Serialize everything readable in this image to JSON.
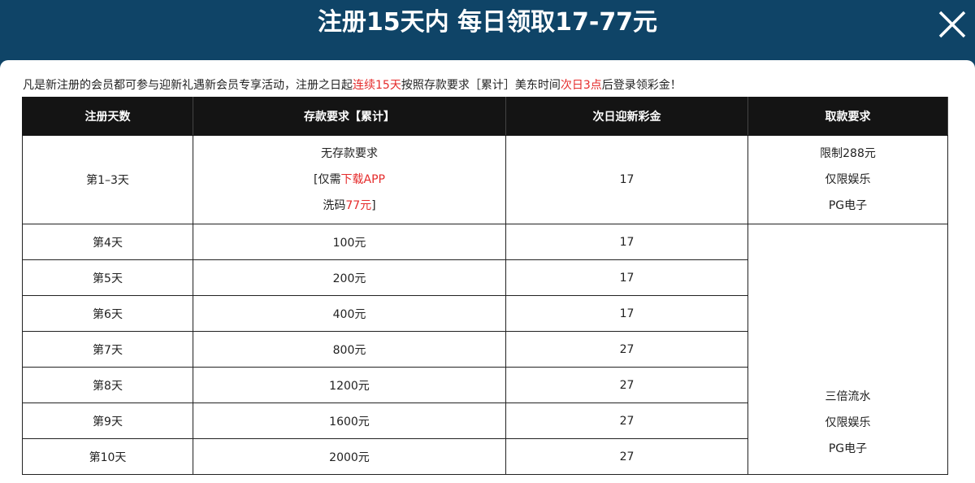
{
  "header": {
    "title": "注册15天内 每日领取17-77元",
    "close_icon": "close-icon"
  },
  "intro": {
    "part1": "凡是新注册的会员都可参与迎新礼遇新会员专享活动，注册之日起",
    "highlight1": "连续15天",
    "part2": "按照存款要求［累计］美东时间",
    "highlight2": "次日3点",
    "part3": "后登录领彩金！"
  },
  "colors": {
    "header_bg": "#0f4467",
    "table_header_bg": "#141414",
    "highlight": "#e52b2b"
  },
  "table": {
    "headers": [
      "注册天数",
      "存款要求【累计】",
      "次日迎新彩金",
      "取款要求"
    ],
    "first_row": {
      "day": "第1–3天",
      "deposit_line1": "无存款要求",
      "deposit_line2_prefix": "[仅需",
      "deposit_line2_red": "下载APP",
      "deposit_line3_prefix": "洗码",
      "deposit_line3_red": "77元",
      "deposit_line3_suffix": "]",
      "bonus": "17",
      "withdraw": [
        "限制288元",
        "仅限娱乐",
        "PG电子"
      ]
    },
    "rows": [
      {
        "day": "第4天",
        "deposit": "100元",
        "bonus": "17"
      },
      {
        "day": "第5天",
        "deposit": "200元",
        "bonus": "17"
      },
      {
        "day": "第6天",
        "deposit": "400元",
        "bonus": "17"
      },
      {
        "day": "第7天",
        "deposit": "800元",
        "bonus": "27"
      },
      {
        "day": "第8天",
        "deposit": "1200元",
        "bonus": "27"
      },
      {
        "day": "第9天",
        "deposit": "1600元",
        "bonus": "27"
      },
      {
        "day": "第10天",
        "deposit": "2000元",
        "bonus": "27"
      }
    ],
    "merged_withdraw": [
      "三倍流水",
      "仅限娱乐",
      "PG电子"
    ]
  }
}
